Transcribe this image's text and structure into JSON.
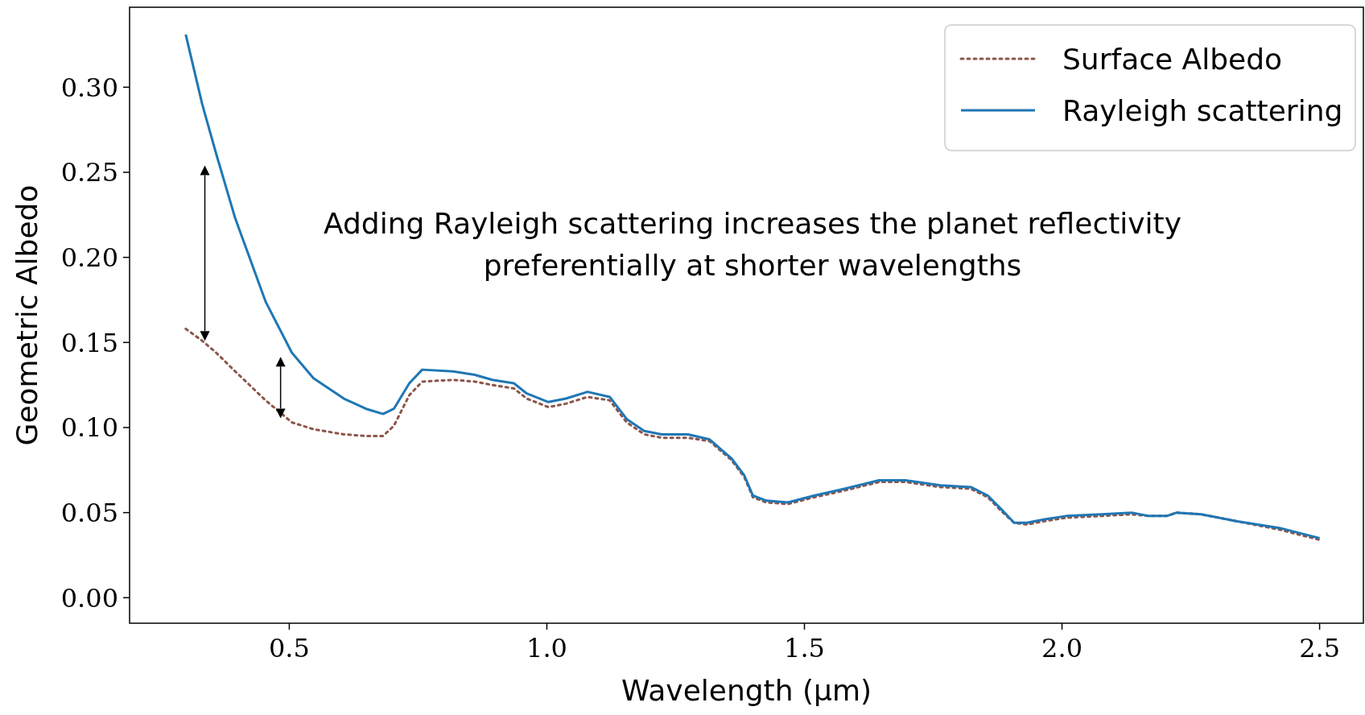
{
  "chart_data": {
    "type": "line",
    "xlabel": "Wavelength (μm)",
    "ylabel": "Geometric Albedo",
    "x": [
      0.299,
      0.331,
      0.358,
      0.395,
      0.454,
      0.505,
      0.547,
      0.606,
      0.649,
      0.682,
      0.703,
      0.733,
      0.758,
      0.818,
      0.86,
      0.894,
      0.936,
      0.961,
      1.003,
      1.037,
      1.079,
      1.122,
      1.155,
      1.189,
      1.223,
      1.274,
      1.316,
      1.358,
      1.383,
      1.4,
      1.426,
      1.468,
      1.519,
      1.578,
      1.645,
      1.696,
      1.764,
      1.823,
      1.856,
      1.882,
      1.907,
      1.932,
      1.966,
      2.008,
      2.076,
      2.135,
      2.169,
      2.203,
      2.223,
      2.27,
      2.338,
      2.422,
      2.5
    ],
    "series": [
      {
        "name": "Surface Albedo",
        "color": "#8c564b",
        "line_style": "dotted",
        "values": [
          0.158,
          0.151,
          0.144,
          0.133,
          0.116,
          0.103,
          0.099,
          0.096,
          0.095,
          0.095,
          0.101,
          0.119,
          0.127,
          0.128,
          0.127,
          0.125,
          0.123,
          0.117,
          0.112,
          0.114,
          0.118,
          0.116,
          0.103,
          0.096,
          0.094,
          0.094,
          0.092,
          0.081,
          0.071,
          0.059,
          0.056,
          0.055,
          0.059,
          0.063,
          0.068,
          0.068,
          0.065,
          0.064,
          0.059,
          0.051,
          0.044,
          0.043,
          0.045,
          0.047,
          0.048,
          0.049,
          0.048,
          0.048,
          0.05,
          0.049,
          0.045,
          0.04,
          0.034
        ]
      },
      {
        "name": "Rayleigh scattering",
        "color": "#1f77b4",
        "line_style": "solid",
        "values": [
          0.331,
          0.29,
          0.261,
          0.223,
          0.174,
          0.144,
          0.129,
          0.117,
          0.111,
          0.108,
          0.111,
          0.126,
          0.134,
          0.133,
          0.131,
          0.128,
          0.126,
          0.12,
          0.115,
          0.117,
          0.121,
          0.118,
          0.105,
          0.098,
          0.096,
          0.096,
          0.093,
          0.082,
          0.072,
          0.06,
          0.057,
          0.056,
          0.06,
          0.064,
          0.069,
          0.069,
          0.066,
          0.065,
          0.06,
          0.052,
          0.044,
          0.044,
          0.046,
          0.048,
          0.049,
          0.05,
          0.048,
          0.048,
          0.05,
          0.049,
          0.045,
          0.041,
          0.035
        ]
      }
    ],
    "xlim": [
      0.19,
      2.585
    ],
    "xticks": [
      {
        "value": 0.5,
        "label": "0.5"
      },
      {
        "value": 1,
        "label": "1.0"
      },
      {
        "value": 1.5,
        "label": "1.5"
      },
      {
        "value": 2,
        "label": "2.0"
      },
      {
        "value": 2.5,
        "label": "2.5"
      }
    ],
    "ylim": [
      -0.015,
      0.347
    ],
    "yticks": [
      {
        "value": 0,
        "label": "0.00"
      },
      {
        "value": 0.05,
        "label": "0.05"
      },
      {
        "value": 0.1,
        "label": "0.10"
      },
      {
        "value": 0.15,
        "label": "0.15"
      },
      {
        "value": 0.2,
        "label": "0.20"
      },
      {
        "value": 0.25,
        "label": "0.25"
      },
      {
        "value": 0.3,
        "label": "0.30"
      }
    ],
    "legend": "top right",
    "grid": false,
    "annotations": [
      "Adding Rayleigh scattering increases the planet reflectivity preferentially at shorter wavelengths"
    ]
  }
}
